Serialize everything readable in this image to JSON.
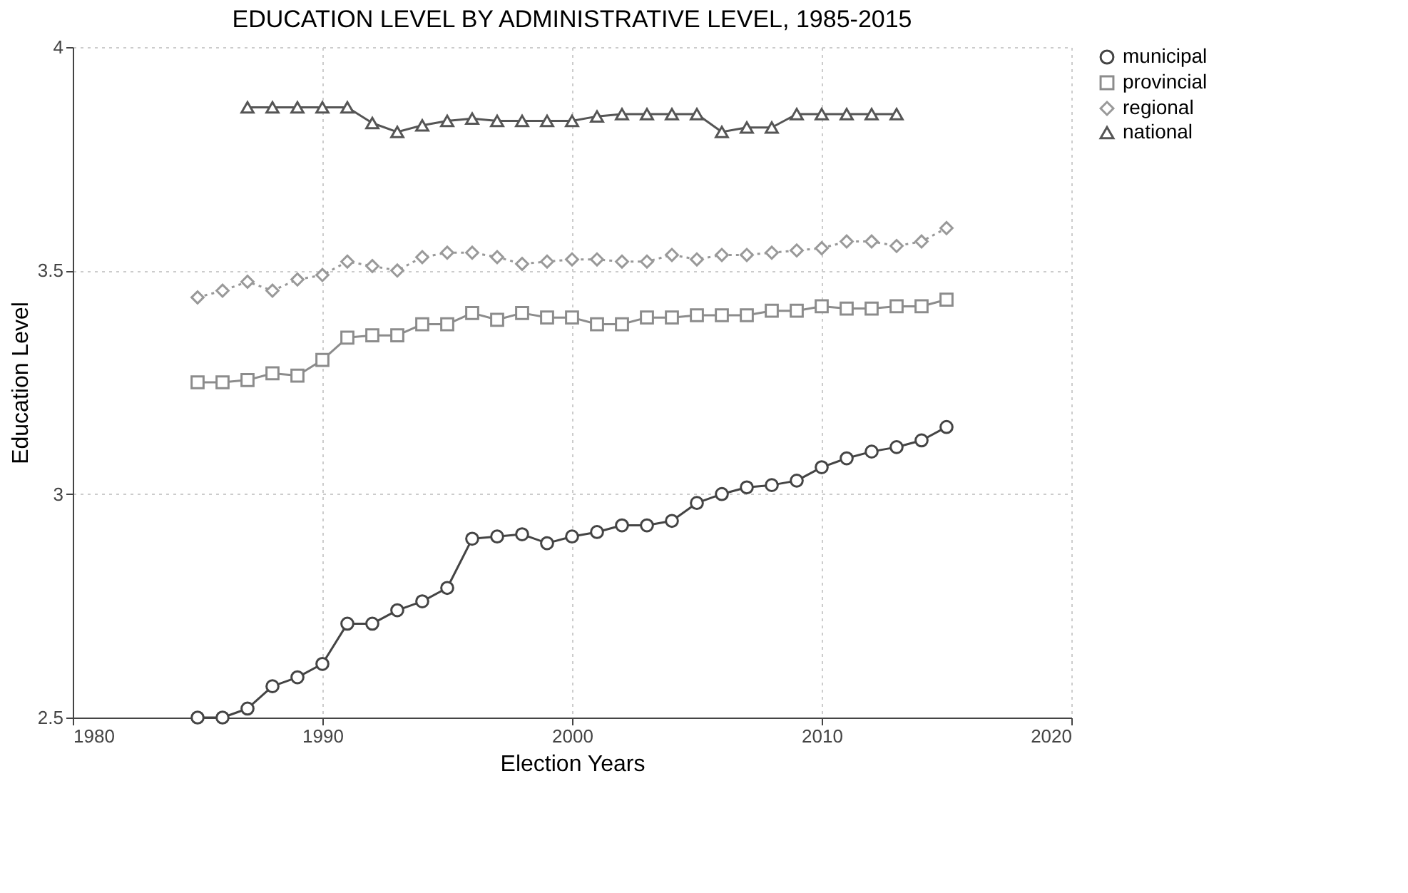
{
  "chart_data": {
    "type": "line",
    "title": "EDUCATION LEVEL BY ADMINISTRATIVE LEVEL, 1985-2015",
    "xlabel": "Election Years",
    "ylabel": "Education Level",
    "xlim": [
      1980,
      2020
    ],
    "xticks": [
      1980,
      1990,
      2000,
      2010,
      2020
    ],
    "ylim": [
      2.5,
      4
    ],
    "yticks": [
      2.5,
      {
        "value": 3,
        "label": "3"
      },
      3.5,
      {
        "value": 4,
        "label": "4"
      }
    ],
    "grid": true,
    "legend": "right",
    "series": [
      {
        "name": "municipal",
        "color": "#444444",
        "marker": "circle",
        "line_style": "solid",
        "x": [
          1985,
          1986,
          1987,
          1988,
          1989,
          1990,
          1991,
          1992,
          1993,
          1994,
          1995,
          1996,
          1997,
          1998,
          1999,
          2000,
          2001,
          2002,
          2003,
          2004,
          2005,
          2006,
          2007,
          2008,
          2009,
          2010,
          2011,
          2012,
          2013,
          2014,
          2015
        ],
        "values": [
          2.5,
          2.5,
          2.52,
          2.57,
          2.59,
          2.62,
          2.71,
          2.71,
          2.74,
          2.76,
          2.79,
          2.9,
          2.905,
          2.91,
          2.89,
          2.905,
          2.915,
          2.93,
          2.93,
          2.94,
          2.98,
          3.0,
          3.015,
          3.02,
          3.03,
          3.06,
          3.08,
          3.095,
          3.105,
          3.12,
          3.15
        ]
      },
      {
        "name": "provincial",
        "color": "#8c8c8c",
        "marker": "square",
        "line_style": "solid",
        "x": [
          1985,
          1986,
          1987,
          1988,
          1989,
          1990,
          1991,
          1992,
          1993,
          1994,
          1995,
          1996,
          1997,
          1998,
          1999,
          2000,
          2001,
          2002,
          2003,
          2004,
          2005,
          2006,
          2007,
          2008,
          2009,
          2010,
          2011,
          2012,
          2013,
          2014,
          2015
        ],
        "values": [
          3.25,
          3.25,
          3.255,
          3.27,
          3.265,
          3.3,
          3.35,
          3.355,
          3.355,
          3.38,
          3.38,
          3.405,
          3.39,
          3.405,
          3.395,
          3.395,
          3.38,
          3.38,
          3.395,
          3.395,
          3.4,
          3.4,
          3.4,
          3.41,
          3.41,
          3.42,
          3.415,
          3.415,
          3.42,
          3.42,
          3.435
        ]
      },
      {
        "name": "regional",
        "color": "#999999",
        "marker": "diamond",
        "line_style": "dotted",
        "x": [
          1985,
          1986,
          1987,
          1988,
          1989,
          1990,
          1991,
          1992,
          1993,
          1994,
          1995,
          1996,
          1997,
          1998,
          1999,
          2000,
          2001,
          2002,
          2003,
          2004,
          2005,
          2006,
          2007,
          2008,
          2009,
          2010,
          2011,
          2012,
          2013,
          2014,
          2015
        ],
        "values": [
          3.44,
          3.455,
          3.475,
          3.455,
          3.48,
          3.49,
          3.52,
          3.51,
          3.5,
          3.53,
          3.54,
          3.54,
          3.53,
          3.515,
          3.52,
          3.525,
          3.525,
          3.52,
          3.52,
          3.535,
          3.525,
          3.535,
          3.535,
          3.54,
          3.545,
          3.55,
          3.565,
          3.565,
          3.555,
          3.565,
          3.595
        ]
      },
      {
        "name": "national",
        "color": "#555555",
        "marker": "triangle",
        "line_style": "solid",
        "x": [
          1987,
          1988,
          1989,
          1990,
          1991,
          1992,
          1993,
          1994,
          1995,
          1996,
          1997,
          1998,
          1999,
          2000,
          2001,
          2002,
          2003,
          2004,
          2005,
          2006,
          2007,
          2008,
          2009,
          2010,
          2011,
          2012,
          2013
        ],
        "values": [
          3.865,
          3.865,
          3.865,
          3.865,
          3.865,
          3.83,
          3.81,
          3.825,
          3.835,
          3.84,
          3.835,
          3.835,
          3.835,
          3.835,
          3.845,
          3.85,
          3.85,
          3.85,
          3.85,
          3.81,
          3.82,
          3.82,
          3.85,
          3.85,
          3.85,
          3.85,
          3.85
        ]
      }
    ]
  }
}
